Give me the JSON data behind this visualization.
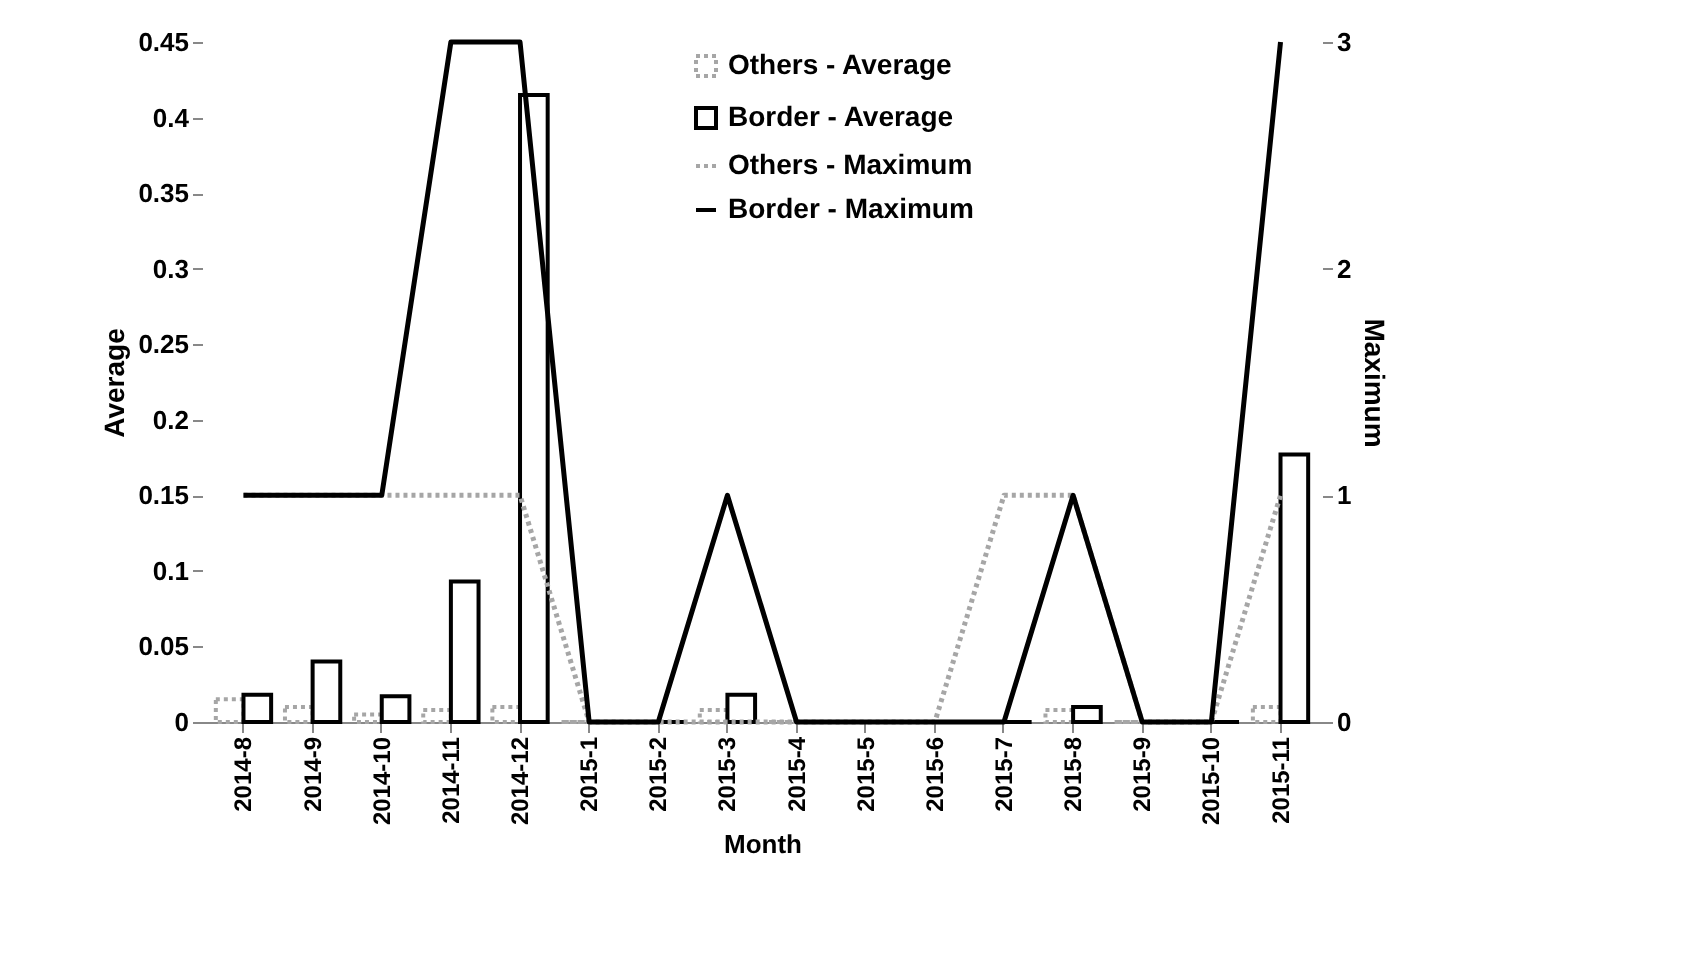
{
  "chart_data": {
    "type": "bar",
    "xlabel": "Month",
    "ylabel": "Average",
    "y2label": "Maximum",
    "categories": [
      "2014-8",
      "2014-9",
      "2014-10",
      "2014-11",
      "2014-12",
      "2015-1",
      "2015-2",
      "2015-3",
      "2015-4",
      "2015-5",
      "2015-6",
      "2015-7",
      "2015-8",
      "2015-9",
      "2015-10",
      "2015-11"
    ],
    "series": [
      {
        "name": "Others - Average",
        "type": "bar",
        "color": "#a6a6a6",
        "line_style": "dotted",
        "values": [
          0.015,
          0.01,
          0.005,
          0.008,
          0.01,
          0,
          0,
          0.008,
          0,
          0,
          0,
          0,
          0.008,
          0,
          0,
          0.01
        ]
      },
      {
        "name": "Border - Average",
        "type": "bar",
        "color": "#000000",
        "values": [
          0.018,
          0.04,
          0.017,
          0.093,
          0.415,
          0,
          0,
          0.018,
          0,
          0,
          0,
          0,
          0.01,
          0,
          0,
          0.177
        ]
      },
      {
        "name": "Others - Maximum",
        "type": "line",
        "axis": "y2",
        "color": "#a6a6a6",
        "line_style": "dotted",
        "values": [
          1,
          1,
          1,
          1,
          1,
          0,
          0,
          0,
          0,
          0,
          0,
          1,
          1,
          0,
          0,
          1
        ]
      },
      {
        "name": "Border - Maximum",
        "type": "line",
        "axis": "y2",
        "color": "#000000",
        "values": [
          1,
          1,
          1,
          3,
          3,
          0,
          0,
          1,
          0,
          0,
          0,
          0,
          1,
          0,
          0,
          3
        ]
      }
    ],
    "ylim": [
      0,
      0.45
    ],
    "yticks": [
      0,
      0.05,
      0.1,
      0.15,
      0.2,
      0.25,
      0.3,
      0.35,
      0.4,
      0.45
    ],
    "y2lim": [
      0,
      3
    ],
    "y2ticks": [
      0,
      1,
      2,
      3
    ],
    "grid": false,
    "legend": "top right"
  }
}
